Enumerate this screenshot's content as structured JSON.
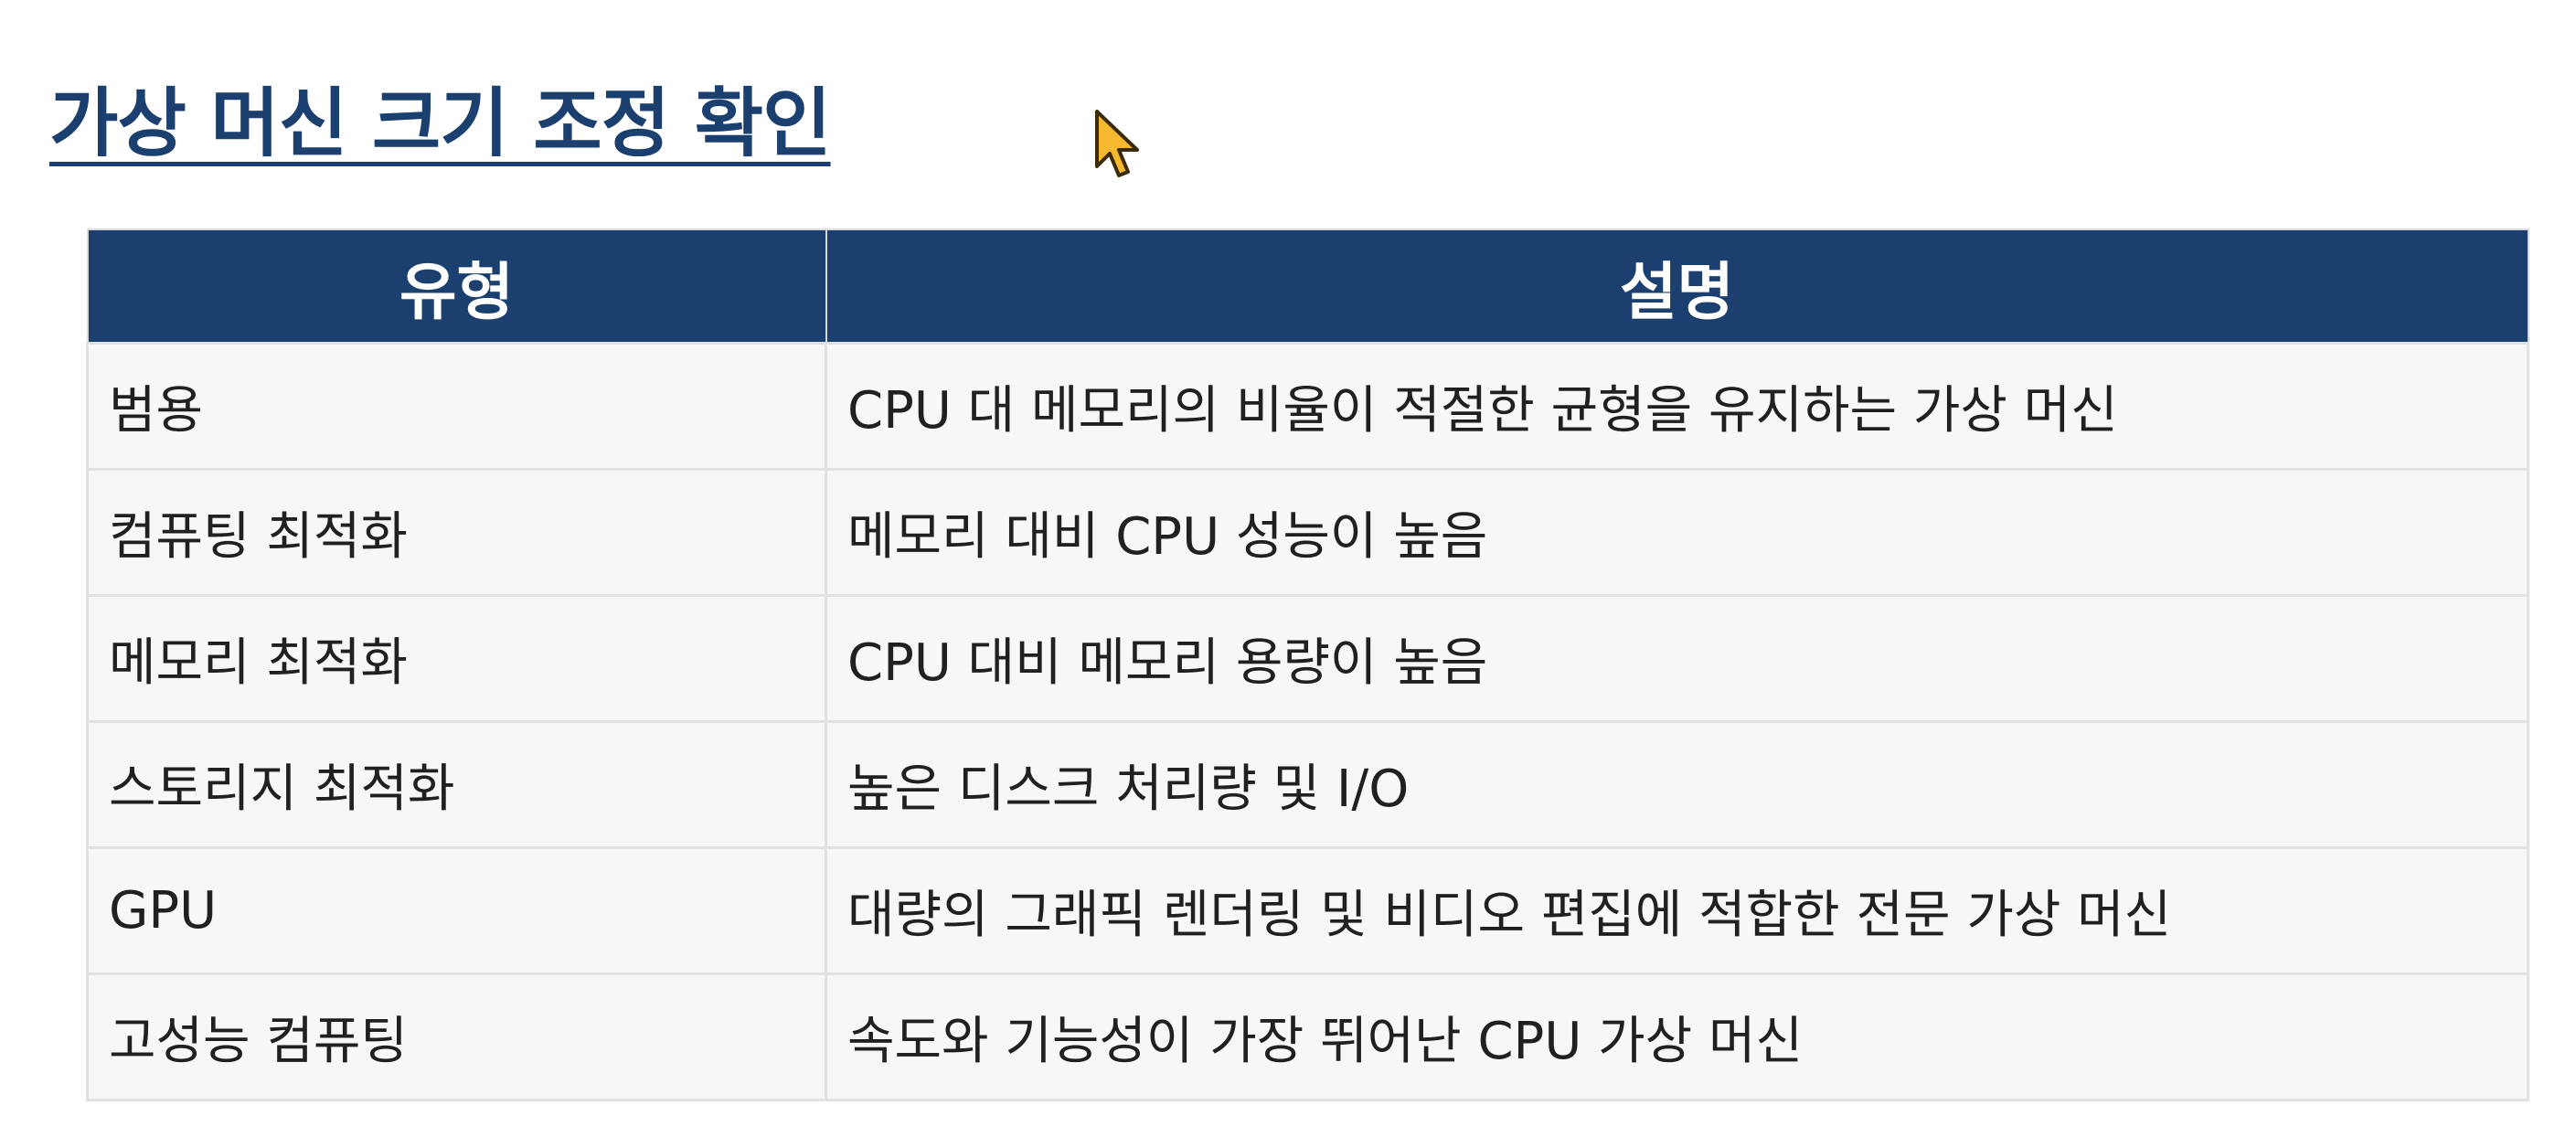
{
  "slide": {
    "title": "가상 머신 크기 조정 확인"
  },
  "table": {
    "headers": [
      "유형",
      "설명"
    ],
    "rows": [
      {
        "type": "범용",
        "description": "CPU 대 메모리의 비율이 적절한 균형을 유지하는 가상 머신"
      },
      {
        "type": "컴퓨팅 최적화",
        "description": "메모리 대비 CPU 성능이 높음"
      },
      {
        "type": "메모리 최적화",
        "description": "CPU 대비 메모리 용량이 높음"
      },
      {
        "type": "스토리지 최적화",
        "description": "높은 디스크 처리량 및 I/O"
      },
      {
        "type": "GPU",
        "description": "대량의 그래픽 렌더링 및 비디오 편집에 적합한 전문 가상 머신"
      },
      {
        "type": "고성능 컴퓨팅",
        "description": "속도와 기능성이 가장 뛰어난 CPU 가상 머신"
      }
    ]
  },
  "colors": {
    "header_bg": "#1b3f6f",
    "title": "#1b3f6f",
    "row_bg": "#f7f7f7",
    "cursor": "#f5b82e"
  },
  "icons": {
    "cursor": "mouse-pointer-icon"
  }
}
